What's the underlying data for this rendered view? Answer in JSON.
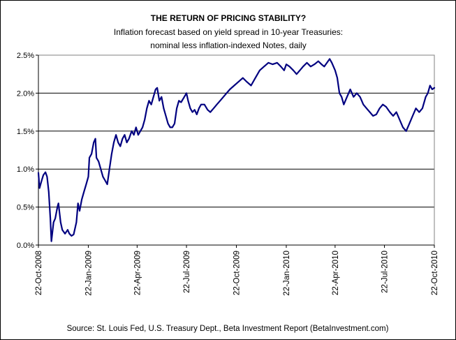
{
  "chart_data": {
    "type": "line",
    "title": "THE RETURN OF PRICING STABILITY?",
    "subtitle_lines": [
      "Inflation forecast based on yield spread in 10-year Treasuries:",
      "nominal less inflation-indexed Notes, daily"
    ],
    "source": "Source: St. Louis Fed, U.S. Treasury Dept., Beta Investment Report (BetaInvestment.com)",
    "xlabel": "",
    "ylabel": "",
    "ylim": [
      0,
      2.5
    ],
    "xlim": [
      "2008-10-22",
      "2010-10-22"
    ],
    "y_ticks": [
      {
        "value": 0,
        "label": "0.0%"
      },
      {
        "value": 0.5,
        "label": "0.5%"
      },
      {
        "value": 1.0,
        "label": "1.0%"
      },
      {
        "value": 1.5,
        "label": "1.5%"
      },
      {
        "value": 2.0,
        "label": "2.0%"
      },
      {
        "value": 2.5,
        "label": "2.5%"
      }
    ],
    "x_ticks": [
      {
        "date": "2008-10-22",
        "label": "22-Oct-2008"
      },
      {
        "date": "2009-01-22",
        "label": "22-Jan-2009"
      },
      {
        "date": "2009-04-22",
        "label": "22-Apr-2009"
      },
      {
        "date": "2009-07-22",
        "label": "22-Jul-2009"
      },
      {
        "date": "2009-10-22",
        "label": "22-Oct-2009"
      },
      {
        "date": "2010-01-22",
        "label": "22-Jan-2010"
      },
      {
        "date": "2010-04-22",
        "label": "22-Apr-2010"
      },
      {
        "date": "2010-07-22",
        "label": "22-Jul-2010"
      },
      {
        "date": "2010-10-22",
        "label": "22-Oct-2010"
      }
    ],
    "grid": "horizontal",
    "line_color": "#000080",
    "series": [
      {
        "name": "",
        "points": [
          [
            "2008-10-22",
            0.95
          ],
          [
            "2008-10-24",
            0.75
          ],
          [
            "2008-10-28",
            0.85
          ],
          [
            "2008-10-31",
            0.92
          ],
          [
            "2008-11-04",
            0.96
          ],
          [
            "2008-11-07",
            0.9
          ],
          [
            "2008-11-10",
            0.7
          ],
          [
            "2008-11-13",
            0.35
          ],
          [
            "2008-11-15",
            0.05
          ],
          [
            "2008-11-19",
            0.3
          ],
          [
            "2008-11-22",
            0.35
          ],
          [
            "2008-11-26",
            0.5
          ],
          [
            "2008-11-28",
            0.55
          ],
          [
            "2008-12-02",
            0.3
          ],
          [
            "2008-12-05",
            0.2
          ],
          [
            "2008-12-10",
            0.15
          ],
          [
            "2008-12-15",
            0.2
          ],
          [
            "2008-12-18",
            0.15
          ],
          [
            "2008-12-22",
            0.12
          ],
          [
            "2008-12-26",
            0.14
          ],
          [
            "2008-12-31",
            0.3
          ],
          [
            "2009-01-03",
            0.55
          ],
          [
            "2009-01-06",
            0.45
          ],
          [
            "2009-01-10",
            0.6
          ],
          [
            "2009-01-14",
            0.7
          ],
          [
            "2009-01-18",
            0.8
          ],
          [
            "2009-01-22",
            0.9
          ],
          [
            "2009-01-24",
            1.15
          ],
          [
            "2009-01-28",
            1.2
          ],
          [
            "2009-02-01",
            1.35
          ],
          [
            "2009-02-04",
            1.4
          ],
          [
            "2009-02-06",
            1.15
          ],
          [
            "2009-02-10",
            1.1
          ],
          [
            "2009-02-14",
            1.0
          ],
          [
            "2009-02-18",
            0.9
          ],
          [
            "2009-02-22",
            0.85
          ],
          [
            "2009-02-26",
            0.8
          ],
          [
            "2009-03-02",
            1.0
          ],
          [
            "2009-03-06",
            1.2
          ],
          [
            "2009-03-10",
            1.35
          ],
          [
            "2009-03-14",
            1.45
          ],
          [
            "2009-03-18",
            1.35
          ],
          [
            "2009-03-22",
            1.3
          ],
          [
            "2009-03-26",
            1.4
          ],
          [
            "2009-03-30",
            1.45
          ],
          [
            "2009-04-03",
            1.35
          ],
          [
            "2009-04-07",
            1.4
          ],
          [
            "2009-04-12",
            1.5
          ],
          [
            "2009-04-16",
            1.45
          ],
          [
            "2009-04-20",
            1.55
          ],
          [
            "2009-04-24",
            1.45
          ],
          [
            "2009-04-28",
            1.5
          ],
          [
            "2009-05-02",
            1.55
          ],
          [
            "2009-05-06",
            1.65
          ],
          [
            "2009-05-10",
            1.8
          ],
          [
            "2009-05-14",
            1.9
          ],
          [
            "2009-05-18",
            1.85
          ],
          [
            "2009-05-22",
            1.95
          ],
          [
            "2009-05-26",
            2.05
          ],
          [
            "2009-05-29",
            2.07
          ],
          [
            "2009-06-02",
            1.9
          ],
          [
            "2009-06-06",
            1.95
          ],
          [
            "2009-06-10",
            1.8
          ],
          [
            "2009-06-14",
            1.7
          ],
          [
            "2009-06-18",
            1.6
          ],
          [
            "2009-06-22",
            1.55
          ],
          [
            "2009-06-26",
            1.55
          ],
          [
            "2009-06-30",
            1.6
          ],
          [
            "2009-07-04",
            1.8
          ],
          [
            "2009-07-08",
            1.9
          ],
          [
            "2009-07-12",
            1.88
          ],
          [
            "2009-07-18",
            1.95
          ],
          [
            "2009-07-22",
            2.0
          ],
          [
            "2009-07-25",
            1.9
          ],
          [
            "2009-07-29",
            1.8
          ],
          [
            "2009-08-02",
            1.75
          ],
          [
            "2009-08-06",
            1.78
          ],
          [
            "2009-08-10",
            1.72
          ],
          [
            "2009-08-14",
            1.8
          ],
          [
            "2009-08-18",
            1.85
          ],
          [
            "2009-08-24",
            1.85
          ],
          [
            "2009-08-30",
            1.78
          ],
          [
            "2009-09-04",
            1.75
          ],
          [
            "2009-09-10",
            1.8
          ],
          [
            "2009-09-16",
            1.85
          ],
          [
            "2009-09-22",
            1.9
          ],
          [
            "2009-09-28",
            1.95
          ],
          [
            "2009-10-04",
            2.0
          ],
          [
            "2009-10-10",
            2.05
          ],
          [
            "2009-10-18",
            2.1
          ],
          [
            "2009-10-26",
            2.15
          ],
          [
            "2009-11-03",
            2.2
          ],
          [
            "2009-11-10",
            2.15
          ],
          [
            "2009-11-18",
            2.1
          ],
          [
            "2009-11-26",
            2.2
          ],
          [
            "2009-12-04",
            2.3
          ],
          [
            "2009-12-12",
            2.35
          ],
          [
            "2009-12-20",
            2.4
          ],
          [
            "2009-12-28",
            2.38
          ],
          [
            "2010-01-05",
            2.4
          ],
          [
            "2010-01-12",
            2.35
          ],
          [
            "2010-01-18",
            2.3
          ],
          [
            "2010-01-22",
            2.38
          ],
          [
            "2010-01-28",
            2.35
          ],
          [
            "2010-02-04",
            2.3
          ],
          [
            "2010-02-10",
            2.25
          ],
          [
            "2010-02-16",
            2.3
          ],
          [
            "2010-02-22",
            2.35
          ],
          [
            "2010-03-01",
            2.4
          ],
          [
            "2010-03-08",
            2.35
          ],
          [
            "2010-03-15",
            2.38
          ],
          [
            "2010-03-22",
            2.42
          ],
          [
            "2010-03-28",
            2.38
          ],
          [
            "2010-04-02",
            2.35
          ],
          [
            "2010-04-07",
            2.4
          ],
          [
            "2010-04-12",
            2.45
          ],
          [
            "2010-04-16",
            2.4
          ],
          [
            "2010-04-22",
            2.3
          ],
          [
            "2010-04-26",
            2.2
          ],
          [
            "2010-04-30",
            2.0
          ],
          [
            "2010-05-04",
            1.95
          ],
          [
            "2010-05-08",
            1.85
          ],
          [
            "2010-05-14",
            1.95
          ],
          [
            "2010-05-20",
            2.05
          ],
          [
            "2010-05-26",
            1.95
          ],
          [
            "2010-06-01",
            2.0
          ],
          [
            "2010-06-07",
            1.95
          ],
          [
            "2010-06-13",
            1.85
          ],
          [
            "2010-06-19",
            1.8
          ],
          [
            "2010-06-25",
            1.75
          ],
          [
            "2010-07-01",
            1.7
          ],
          [
            "2010-07-07",
            1.72
          ],
          [
            "2010-07-13",
            1.8
          ],
          [
            "2010-07-19",
            1.85
          ],
          [
            "2010-07-25",
            1.82
          ],
          [
            "2010-08-01",
            1.75
          ],
          [
            "2010-08-07",
            1.7
          ],
          [
            "2010-08-13",
            1.75
          ],
          [
            "2010-08-19",
            1.65
          ],
          [
            "2010-08-25",
            1.55
          ],
          [
            "2010-08-31",
            1.5
          ],
          [
            "2010-09-06",
            1.6
          ],
          [
            "2010-09-12",
            1.7
          ],
          [
            "2010-09-18",
            1.8
          ],
          [
            "2010-09-24",
            1.75
          ],
          [
            "2010-09-30",
            1.8
          ],
          [
            "2010-10-06",
            1.95
          ],
          [
            "2010-10-10",
            2.0
          ],
          [
            "2010-10-14",
            2.1
          ],
          [
            "2010-10-18",
            2.05
          ],
          [
            "2010-10-22",
            2.07
          ]
        ]
      }
    ]
  }
}
